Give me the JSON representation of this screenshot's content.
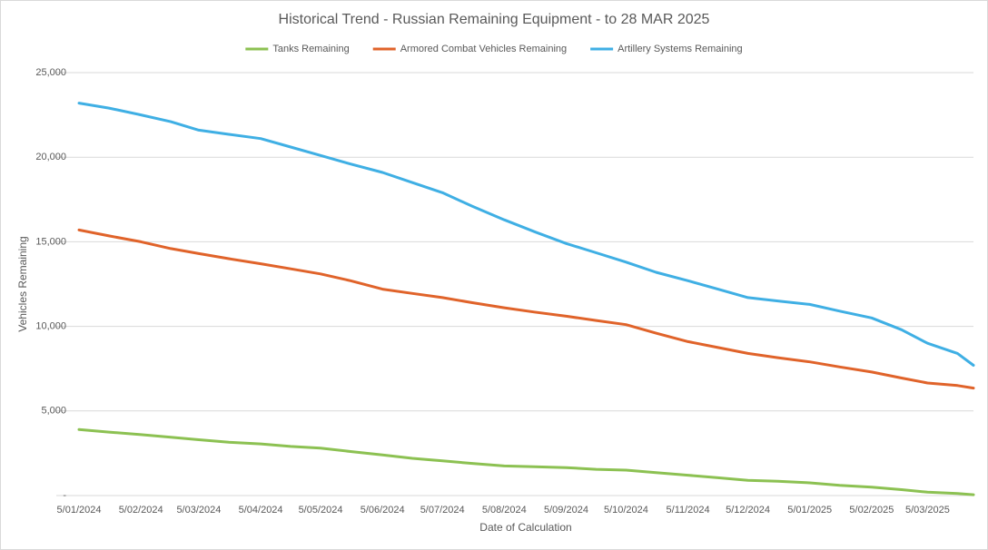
{
  "chart_data": {
    "type": "line",
    "title": "Historical Trend - Russian Remaining Equipment - to 28 MAR 2025",
    "x_label": "Date of Calculation",
    "y_label": "Vehicles Remaining",
    "x": [
      "5/01/2024",
      "20/01/2024",
      "5/02/2024",
      "20/02/2024",
      "5/03/2024",
      "20/03/2024",
      "5/04/2024",
      "20/04/2024",
      "5/05/2024",
      "20/05/2024",
      "5/06/2024",
      "20/06/2024",
      "5/07/2024",
      "20/07/2024",
      "5/08/2024",
      "20/08/2024",
      "5/09/2024",
      "20/09/2024",
      "5/10/2024",
      "20/10/2024",
      "5/11/2024",
      "20/11/2024",
      "5/12/2024",
      "20/12/2024",
      "5/01/2025",
      "20/01/2025",
      "5/02/2025",
      "20/02/2025",
      "5/03/2025",
      "20/03/2025",
      "28/03/2025"
    ],
    "series": [
      {
        "name": "Tanks Remaining",
        "color": "#8cc152",
        "values": [
          3900,
          3750,
          3600,
          3450,
          3300,
          3150,
          3050,
          2900,
          2800,
          2600,
          2400,
          2200,
          2050,
          1900,
          1750,
          1700,
          1650,
          1550,
          1500,
          1350,
          1200,
          1050,
          900,
          850,
          750,
          600,
          500,
          350,
          200,
          120,
          50
        ]
      },
      {
        "name": "Armored Combat Vehicles Remaining",
        "color": "#e0632a",
        "values": [
          15700,
          15350,
          15000,
          14600,
          14300,
          14000,
          13700,
          13400,
          13100,
          12700,
          12200,
          11950,
          11700,
          11400,
          11100,
          10850,
          10600,
          10350,
          10100,
          9600,
          9100,
          8750,
          8400,
          8150,
          7900,
          7600,
          7300,
          6950,
          6650,
          6500,
          6350
        ]
      },
      {
        "name": "Artillery Systems Remaining",
        "color": "#3fafe4",
        "values": [
          23200,
          22900,
          22500,
          22100,
          21600,
          21350,
          21100,
          20600,
          20100,
          19600,
          19100,
          18500,
          17900,
          17100,
          16300,
          15600,
          14900,
          14350,
          13800,
          13200,
          12700,
          12200,
          11700,
          11500,
          11300,
          10900,
          10500,
          9800,
          9000,
          8400,
          7700
        ]
      }
    ],
    "xlim": [
      "5/01/2024",
      "28/03/2025"
    ],
    "xticks": [
      "5/01/2024",
      "5/02/2024",
      "5/03/2024",
      "5/04/2024",
      "5/05/2024",
      "5/06/2024",
      "5/07/2024",
      "5/08/2024",
      "5/09/2024",
      "5/10/2024",
      "5/11/2024",
      "5/12/2024",
      "5/01/2025",
      "5/02/2025",
      "5/03/2025"
    ],
    "ylim": [
      0,
      25000
    ],
    "yticks": [
      {
        "value": 0,
        "label": "-"
      },
      {
        "value": 5000,
        "label": "5,000"
      },
      {
        "value": 10000,
        "label": "10,000"
      },
      {
        "value": 15000,
        "label": "15,000"
      },
      {
        "value": 20000,
        "label": "20,000"
      },
      {
        "value": 25000,
        "label": "25,000"
      }
    ],
    "grid": true,
    "legend": "top"
  }
}
